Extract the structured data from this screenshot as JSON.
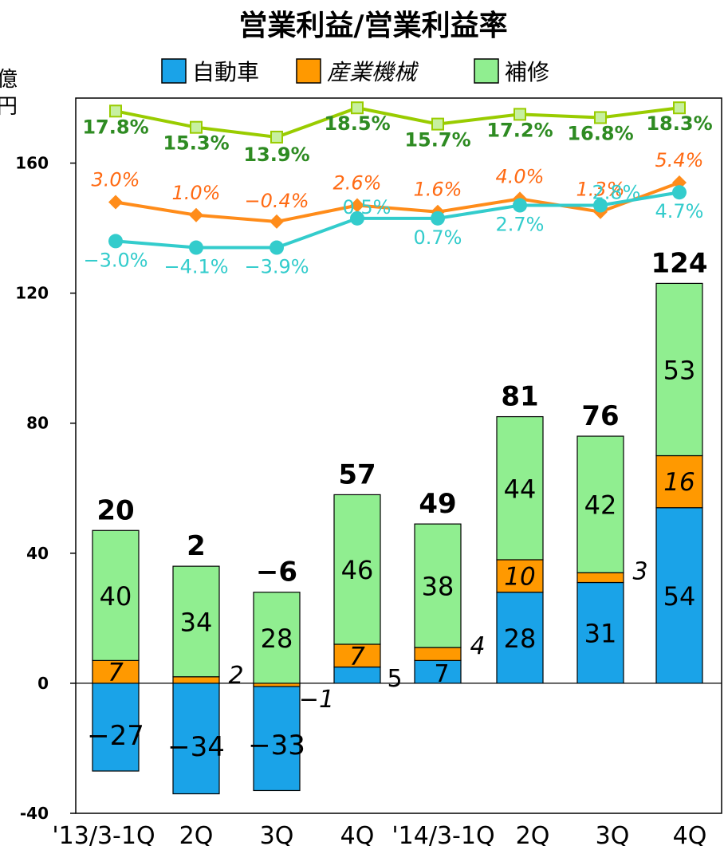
{
  "chart_data": {
    "type": "bar",
    "title": "営業利益/営業利益率",
    "ylabel_partial": "億円",
    "ylim": [
      -40,
      180
    ],
    "yticks": [
      -40,
      0,
      40,
      80,
      120,
      160
    ],
    "categories": [
      "'13/3-1Q",
      "2Q",
      "3Q",
      "4Q",
      "'14/3-1Q",
      "2Q",
      "3Q",
      "4Q"
    ],
    "totals": [
      "20",
      "2",
      "−6",
      "57",
      "49",
      "81",
      "76",
      "124"
    ],
    "series": [
      {
        "name": "自動車",
        "color": "#1aa3e8",
        "values": [
          -27,
          -34,
          -33,
          5,
          7,
          28,
          31,
          54
        ],
        "labels": [
          "−27",
          "−34",
          "−33",
          "5",
          "7",
          "28",
          "31",
          "54"
        ]
      },
      {
        "name": "産業機械",
        "color": "#ff9900",
        "values": [
          7,
          2,
          -1,
          7,
          4,
          10,
          3,
          16
        ],
        "labels": [
          "7",
          "2",
          "−1",
          "7",
          "4",
          "10",
          "3",
          "16"
        ]
      },
      {
        "name": "補修",
        "color": "#90ee90",
        "values": [
          40,
          34,
          28,
          46,
          38,
          44,
          42,
          53
        ],
        "labels": [
          "40",
          "34",
          "28",
          "46",
          "38",
          "44",
          "42",
          "53"
        ]
      }
    ],
    "margin_lines": [
      {
        "name": "補修",
        "color": "#99cc00",
        "label_color": "#2e8b22",
        "values": [
          176,
          171,
          168,
          177,
          172,
          175,
          174,
          177
        ],
        "labels": [
          "17.8%",
          "15.3%",
          "13.9%",
          "18.5%",
          "15.7%",
          "17.2%",
          "16.8%",
          "18.3%"
        ]
      },
      {
        "name": "産業機械",
        "color": "#ff8c1a",
        "label_color": "#ff6a13",
        "values": [
          148,
          144,
          142,
          147,
          145,
          149,
          145,
          154
        ],
        "labels": [
          "3.0%",
          "1.0%",
          "−0.4%",
          "2.6%",
          "1.6%",
          "4.0%",
          "1.3%",
          "5.4%"
        ]
      },
      {
        "name": "自動車",
        "color": "#33cccc",
        "label_color": "#33cccc",
        "values": [
          136,
          134,
          134,
          143,
          143,
          147,
          147,
          151
        ],
        "labels": [
          "−3.0%",
          "−4.1%",
          "−3.9%",
          "0.5%",
          "0.7%",
          "2.7%",
          "2.8%",
          "4.7%"
        ]
      }
    ],
    "legend_position": "top"
  }
}
